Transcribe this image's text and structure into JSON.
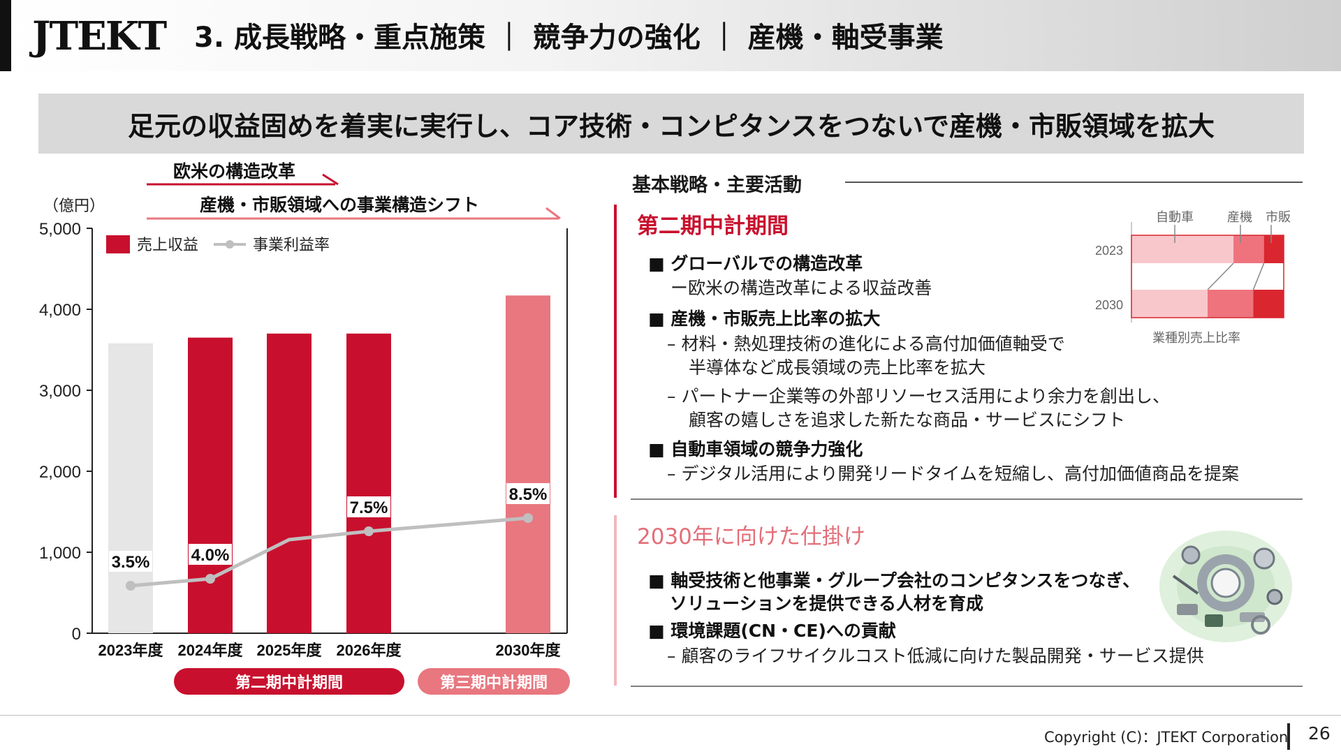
{
  "header": {
    "logo": "JTEKT",
    "title": "3. 成長戦略・重点施策 ｜ 競争力の強化 ｜ 産機・軸受事業"
  },
  "banner": "足元の収益固めを着実に実行し、コア技術・コンピタンスをつないで産機・市販領域を拡大",
  "chart_arrows": {
    "arrow1": "欧米の構造改革",
    "arrow2": "産機・市販領域への事業構造シフト"
  },
  "chart_data": {
    "type": "bar",
    "unit": "（億円）",
    "categories": [
      "2023年度",
      "2024年度",
      "2025年度",
      "2026年度",
      "2030年度"
    ],
    "ylim": [
      0,
      5000
    ],
    "yticks": [
      "0",
      "1,000",
      "2,000",
      "3,000",
      "4,000",
      "5,000"
    ],
    "series": [
      {
        "name": "売上収益",
        "type": "bar",
        "values": [
          3580,
          3650,
          3700,
          3700,
          4170
        ]
      },
      {
        "name": "事業利益率",
        "type": "line",
        "values": [
          3.5,
          4.0,
          null,
          7.5,
          8.5
        ],
        "labels": [
          "3.5%",
          "4.0%",
          "",
          "7.5%",
          "8.5%"
        ]
      }
    ],
    "bar_colors": [
      "#e6e6e6",
      "#c8102e",
      "#c8102e",
      "#c8102e",
      "#e8777f"
    ],
    "line_color": "#bfbfbf",
    "legend_position": "top-left",
    "periods": [
      {
        "label": "第二期中計期間",
        "color": "#c8102e"
      },
      {
        "label": "第三期中計期間",
        "color": "#e8777f"
      }
    ]
  },
  "right": {
    "section_title": "基本戦略・主要活動",
    "phase2": {
      "title": "第二期中計期間",
      "b1": "■ グローバルでの構造改革",
      "b1_s1": "ー欧米の構造改革による収益改善",
      "b2": "■ 産機・市販売上比率の拡大",
      "b2_s1a": "–  材料・熱処理技術の進化による高付加価値軸受で",
      "b2_s1b": "半導体など成長領域の売上比率を拡大",
      "b2_s2a": "–  パートナー企業等の外部リソーセス活用により余力を創出し、",
      "b2_s2b": "顧客の嬉しさを追求した新たな商品・サービスにシフト",
      "b3": "■ 自動車領域の競争力強化",
      "b3_s1": "–  デジタル活用により開発リードタイムを短縮し、高付加価値商品を提案"
    },
    "phase3": {
      "title": "2030年に向けた仕掛け",
      "b1a": "■ 軸受技術と他事業・グループ会社のコンピタンスをつなぎ、",
      "b1b": "ソリューションを提供できる人材を育成",
      "b2": "■ 環境課題(CN・CE)への貢献",
      "b2_s1": "–  顧客のライフサイクルコスト低減に向けた製品開発・サービス提供"
    },
    "mix_chart": {
      "legend": [
        "自動車",
        "産機",
        "市販"
      ],
      "rows": [
        {
          "label": "2023",
          "values": [
            0.67,
            0.2,
            0.13
          ]
        },
        {
          "label": "2030",
          "values": [
            0.5,
            0.3,
            0.2
          ]
        }
      ],
      "caption": "業種別売上比率",
      "colors": [
        "#f8c7cb",
        "#ee737d",
        "#d9262f"
      ]
    }
  },
  "footer": {
    "copyright": "Copyright (C)：JTEKT Corporation",
    "page": "26"
  }
}
